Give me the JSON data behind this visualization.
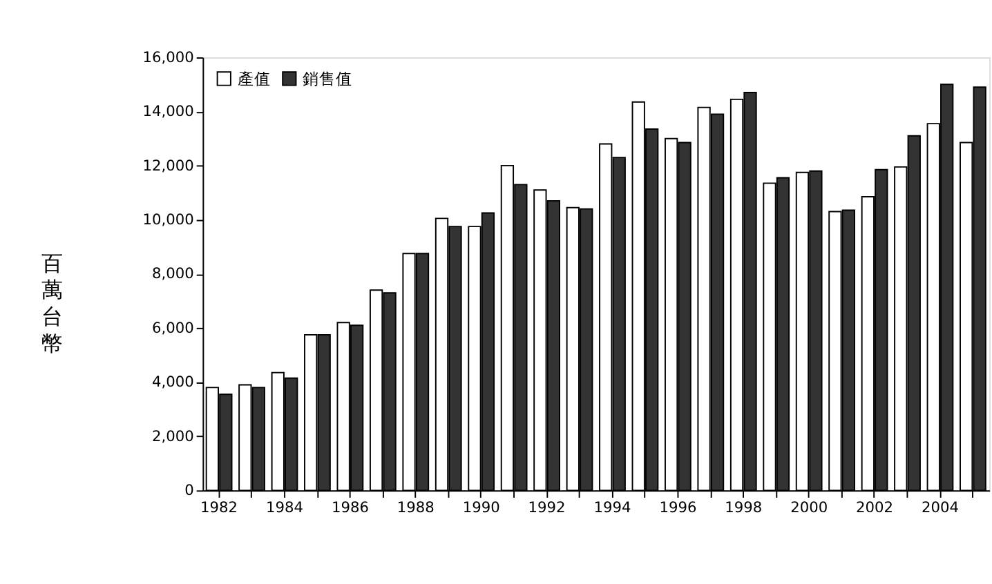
{
  "chart_data": {
    "type": "bar",
    "ylabel": "百萬台幣",
    "categories": [
      "1982",
      null,
      "1984",
      null,
      "1986",
      null,
      "1988",
      null,
      "1990",
      null,
      "1992",
      null,
      "1994",
      null,
      "1996",
      null,
      "1998",
      null,
      "2000",
      null,
      "2002",
      null,
      "2004",
      null
    ],
    "series": [
      {
        "name": "產值",
        "color": "#ffffff",
        "values": [
          3800,
          3900,
          4350,
          5750,
          6200,
          7400,
          8750,
          10050,
          9750,
          12000,
          11100,
          10450,
          12800,
          14350,
          13000,
          14150,
          14450,
          11350,
          11750,
          10300,
          10850,
          11950,
          13550,
          12850
        ]
      },
      {
        "name": "銷售值",
        "color": "#333333",
        "values": [
          3550,
          3800,
          4150,
          5750,
          6100,
          7300,
          8750,
          9750,
          10250,
          11300,
          10700,
          10400,
          12300,
          13350,
          12850,
          13900,
          14700,
          11550,
          11800,
          10350,
          11850,
          13100,
          15000,
          14900
        ]
      }
    ],
    "ylim": [
      0,
      16000
    ],
    "yticks": [
      0,
      {
        "value": 2000,
        "label": "2,000"
      },
      {
        "value": 4000,
        "label": "4,000"
      },
      {
        "value": 6000,
        "label": "6,000"
      },
      {
        "value": 8000,
        "label": "8,000"
      },
      {
        "value": 10000,
        "label": "10,000"
      },
      {
        "value": 12000,
        "label": "12,000"
      },
      {
        "value": 14000,
        "label": "14,000"
      },
      {
        "value": 16000,
        "label": "16,000"
      }
    ],
    "grid": false,
    "legend": "top left"
  }
}
